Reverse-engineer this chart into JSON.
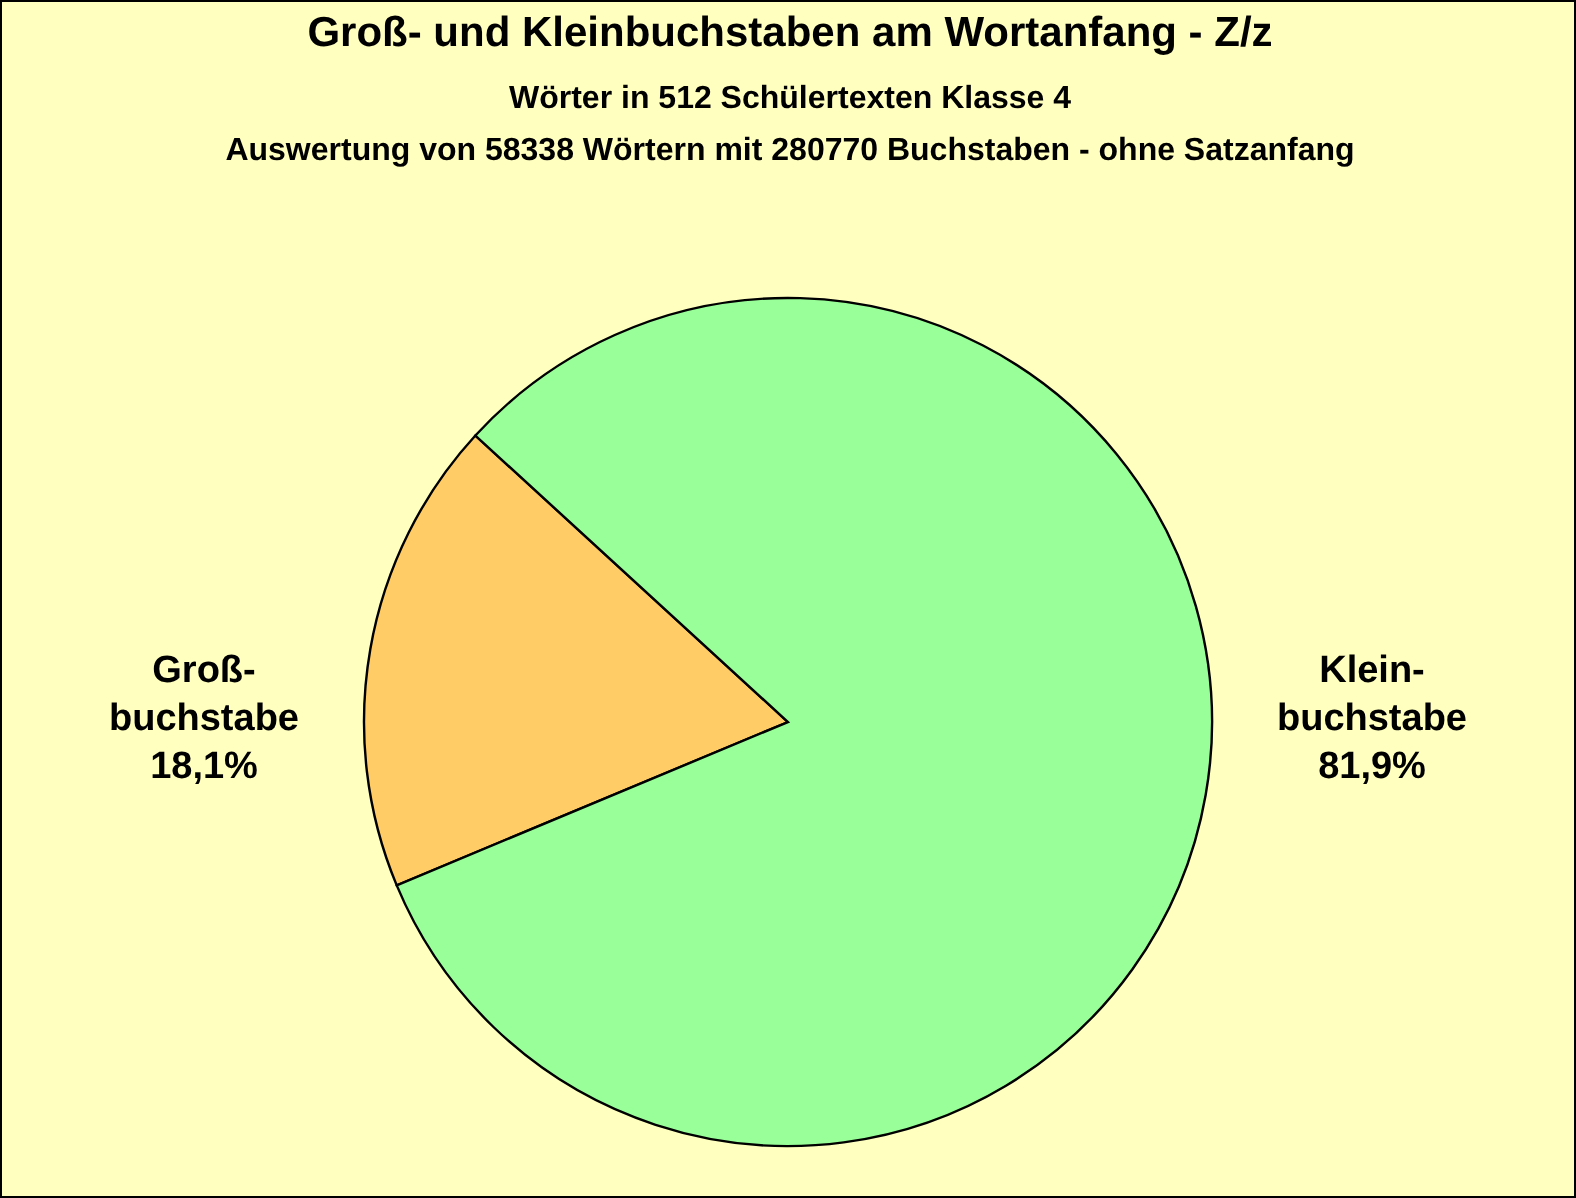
{
  "chart_data": {
    "type": "pie",
    "title": "Groß- und  Kleinbuchstaben am Wortanfang - Z/z",
    "subtitle": "Wörter in 512 Schülertexten Klasse 4\nAuswertung von 58338 Wörtern mit 280770 Buchstaben - ohne Satzanfang",
    "categories": [
      "Groß-buchstabe",
      "Klein-buchstabe"
    ],
    "values": [
      18.1,
      81.9
    ],
    "colors": [
      "#ffcc66",
      "#99ff99"
    ],
    "value_labels": [
      "18,1%",
      "81,9%"
    ],
    "legend": false
  }
}
